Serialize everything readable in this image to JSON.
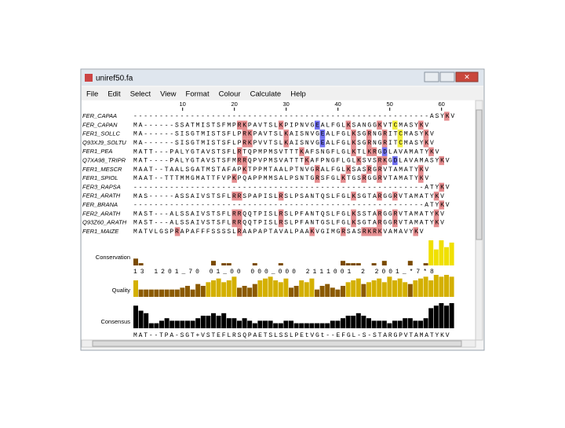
{
  "window": {
    "title": "uniref50.fa",
    "menu": [
      "File",
      "Edit",
      "Select",
      "View",
      "Format",
      "Colour",
      "Calculate",
      "Help"
    ]
  },
  "alignment": {
    "ruler": [
      10,
      20,
      30,
      40,
      50,
      60
    ],
    "names": [
      "FER_CAPAA",
      "FER_CAPAN",
      "FER1_SOLLC",
      "Q93XJ9_SOLTU",
      "FER1_PEA",
      "Q7XA98_TRIPR",
      "FER1_MESCR",
      "FER1_SPIOL",
      "FER3_RAPSA",
      "FER1_ARATH",
      "FER_BRANA",
      "FER2_ARATH",
      "Q93Z60_ARATH",
      "FER1_MAIZE"
    ],
    "sequences": [
      "---------------------------------------------------------ASYKV",
      "MA------SSATMISTSFMPRKPAVTSLKPIPNVGEALFGLKSANGGKVTCMASYKV",
      "MA------SISGTMISTSFLPRKPAVTSLKAISNVGEALFGLKSGRNGRITCMASYKV",
      "MA------SISGTMISTSFLPRKPVVTSLKAISNVGEALFGLKSGRNGRITCMASYKV",
      "MATT---PALYGTAVSTSFLRTQPMPMSVTTTKAFSNGFLGLKTLKRGDLAVAMATYKV",
      "MAT----PALYGTAVSTSFMRRQPVPMSVATTTKAFPNGFLGLKSVSRKGDLAVAMASYKV",
      "MAAT--TAALSGATMSTAFAPKTPPMTAALPTNVGRALFGLKSASRGRVTAMATYKV",
      "MAAT--TTTMMGMATTFVPKPQAPPMMSALPSNTGRSFGLKTGSRGGRVTAMATYKV",
      "--------------------------------------------------------ATYKV",
      "MAS-----ASSAIVSTSFLRRSPAPISLRSLPSANTQSLFGLKSGTARGGRVTAMATYKV",
      "--------------------------------------------------------ATYKV",
      "MAST---ALSSAIVSTSFLRRQQTPISLRSLPFANTQSLFGLKSSTARGGRVTAMATYKV",
      "MAST---ALSSAIVSTSFLRRQQTPISLRSLPFANTGSLFGLKSGTARGGRVTAMATYKV",
      "MATVLGSPRAPAFFFSSSSLRAAPAPTAVALPAAKVGIMGRSASRKRKVAMAVYKV"
    ],
    "residue_colors": {
      "K": "#e58d8f",
      "R": "#e58d8f",
      "E": "#7070f0",
      "D": "#7070f0",
      "C": "#f2ef40"
    },
    "annotations": {
      "conservation": {
        "label": "Conservation",
        "values": [
          3,
          1,
          0,
          0,
          0,
          0,
          0,
          0,
          0,
          0,
          0,
          0,
          0,
          0,
          0,
          2,
          0,
          1,
          1,
          0,
          0,
          0,
          0,
          1,
          0,
          0,
          0,
          0,
          1,
          0,
          0,
          0,
          0,
          0,
          0,
          0,
          0,
          0,
          0,
          0,
          2,
          1,
          1,
          1,
          0,
          0,
          1,
          0,
          2,
          0,
          0,
          0,
          0,
          2,
          0,
          0,
          1,
          11,
          7,
          11,
          8,
          10
        ],
        "text": "13       1201_70   01_00  000_000  2111001 2     2001_*7*8",
        "colors": [
          "#7a4a00",
          "#f0e000"
        ]
      },
      "quality": {
        "label": "Quality",
        "values": [
          9,
          4,
          4,
          4,
          4,
          4,
          4,
          4,
          4,
          5,
          6,
          4,
          7,
          6,
          8,
          9,
          10,
          8,
          9,
          11,
          5,
          6,
          5,
          7,
          9,
          10,
          11,
          9,
          8,
          10,
          5,
          6,
          9,
          8,
          10,
          4,
          6,
          7,
          5,
          4,
          6,
          8,
          9,
          10,
          7,
          8,
          9,
          10,
          8,
          11,
          9,
          10,
          8,
          7,
          9,
          10,
          11,
          9,
          12,
          11,
          12,
          11
        ],
        "colors": [
          "#8b5a00",
          "#d4b000"
        ]
      },
      "consensus": {
        "label": "Consensus",
        "values": [
          9,
          7,
          6,
          2,
          2,
          3,
          4,
          3,
          3,
          3,
          3,
          3,
          4,
          5,
          5,
          6,
          5,
          6,
          4,
          4,
          3,
          4,
          3,
          2,
          3,
          3,
          3,
          2,
          2,
          3,
          3,
          2,
          2,
          2,
          2,
          2,
          2,
          2,
          3,
          3,
          4,
          5,
          5,
          6,
          5,
          4,
          3,
          3,
          3,
          2,
          3,
          3,
          4,
          4,
          3,
          3,
          4,
          8,
          9,
          10,
          9,
          10
        ],
        "text": "MAT--TPA-SGT+VSTEFLRSQPAETSLSSLPEtVGt--EFGL-S-STARGPVTAMATYKV"
      }
    }
  }
}
